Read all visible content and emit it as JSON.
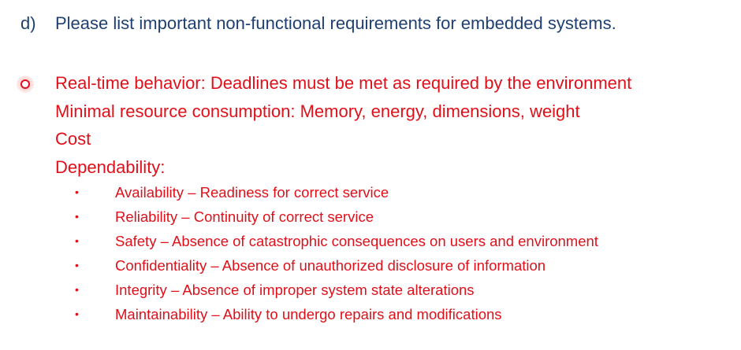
{
  "question": {
    "letter": "d)",
    "text": "Please list important non-functional requirements for embedded systems."
  },
  "answers": [
    "Real-time behavior: Deadlines must be met as required by the environment",
    "Minimal resource consumption: Memory, energy, dimensions, weight",
    "Cost",
    "Dependability:"
  ],
  "dependability_items": [
    "Availability – Readiness for correct service",
    "Reliability – Continuity of correct service",
    "Safety – Absence of catastrophic consequences on users and environment",
    "Confidentiality – Absence of unauthorized disclosure of information",
    "Integrity – Absence of improper system state alterations",
    "Maintainability – Ability to undergo repairs and modifications"
  ],
  "bullet_glyph": "•",
  "colors": {
    "question": "#1f3f73",
    "answer": "#e0101a"
  },
  "icons": {
    "cursor": "pointer-highlight-icon"
  }
}
